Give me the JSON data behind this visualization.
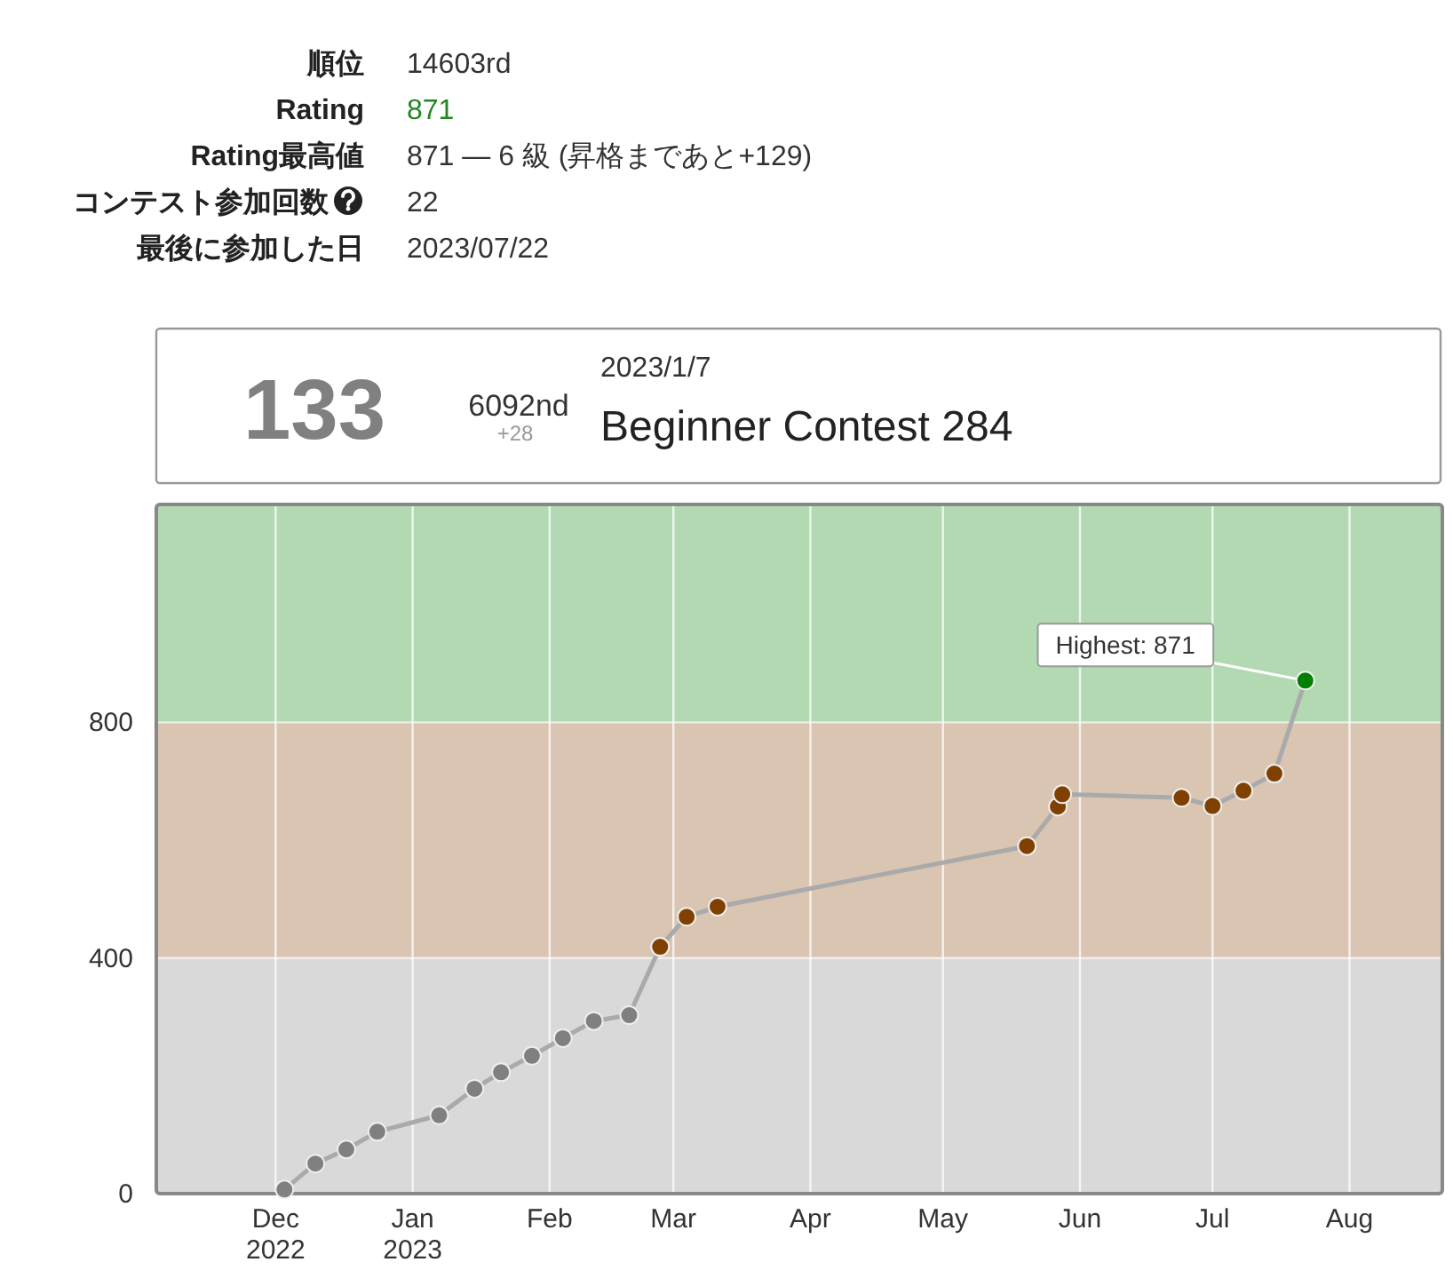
{
  "chart_data": [
    {
      "type": "other",
      "annotations": [
        "順位",
        "14603rd",
        "Rating",
        "871",
        "Rating最高値",
        "871 — 6 級 (昇格まであと+129)",
        "コンテスト参加回数",
        "22",
        "最後に参加した日",
        "2023/07/22"
      ],
      "colors": [
        "#222222",
        "#333333",
        "#222222",
        "#218721",
        "#222222",
        "#333333",
        "#222222",
        "#333333",
        "#222222",
        "#333333"
      ]
    },
    {
      "type": "other",
      "annotations": [
        "133",
        "6092nd",
        "+28",
        "2023/1/7",
        "Beginner Contest 284"
      ],
      "colors": [
        "#808080",
        "#333333",
        "#999999",
        "#333333",
        "#222222"
      ]
    },
    {
      "type": "line",
      "x": [
        "2022-12-03",
        "2022-12-10",
        "2022-12-17",
        "2022-12-24",
        "2023-01-07",
        "2023-01-15",
        "2023-01-21",
        "2023-01-28",
        "2023-02-04",
        "2023-02-11",
        "2023-02-19",
        "2023-02-26",
        "2023-03-04",
        "2023-03-11",
        "2023-05-20",
        "2023-05-27",
        "2023-05-28",
        "2023-06-24",
        "2023-07-01",
        "2023-07-08",
        "2023-07-15",
        "2023-07-22"
      ],
      "series": [
        {
          "values": [
            7,
            51,
            75,
            105,
            133,
            178,
            206,
            234,
            264,
            293,
            303,
            419,
            470,
            487,
            590,
            657,
            678,
            672,
            658,
            684,
            713,
            871
          ],
          "color": "#aaaaaa",
          "colors": [
            "#808080",
            "#808080",
            "#808080",
            "#808080",
            "#808080",
            "#808080",
            "#808080",
            "#808080",
            "#808080",
            "#808080",
            "#808080",
            "#804000",
            "#804000",
            "#804000",
            "#804000",
            "#804000",
            "#804000",
            "#804000",
            "#804000",
            "#804000",
            "#804000",
            "#008000"
          ]
        }
      ],
      "xlim": [
        "2022-11-04",
        "2023-08-22"
      ],
      "ylim": [
        0,
        1170
      ],
      "xticks": [
        {
          "value": "2022-12-01",
          "label": "Dec\n2022"
        },
        {
          "value": "2023-01-01",
          "label": "Jan\n2023"
        },
        {
          "value": "2023-02-01",
          "label": "Feb"
        },
        {
          "value": "2023-03-01",
          "label": "Mar"
        },
        {
          "value": "2023-04-01",
          "label": "Apr"
        },
        {
          "value": "2023-05-01",
          "label": "May"
        },
        {
          "value": "2023-06-01",
          "label": "Jun"
        },
        {
          "value": "2023-07-01",
          "label": "Jul"
        },
        {
          "value": "2023-08-01",
          "label": "Aug"
        }
      ],
      "yticks": [
        0,
        400,
        800
      ],
      "bands": [
        {
          "axis": "y",
          "from": 0,
          "to": 400,
          "color": "#d9d9d9"
        },
        {
          "axis": "y",
          "from": 400,
          "to": 800,
          "color": "#d9c5b2"
        },
        {
          "axis": "y",
          "from": 800,
          "to": 1170,
          "color": "#b2d9b2"
        }
      ],
      "grid": true,
      "marker": "circle",
      "line_style": "solid",
      "annotations": [
        {
          "text": "Highest: 871",
          "x": "2023-07-22",
          "y": 871
        }
      ]
    }
  ]
}
